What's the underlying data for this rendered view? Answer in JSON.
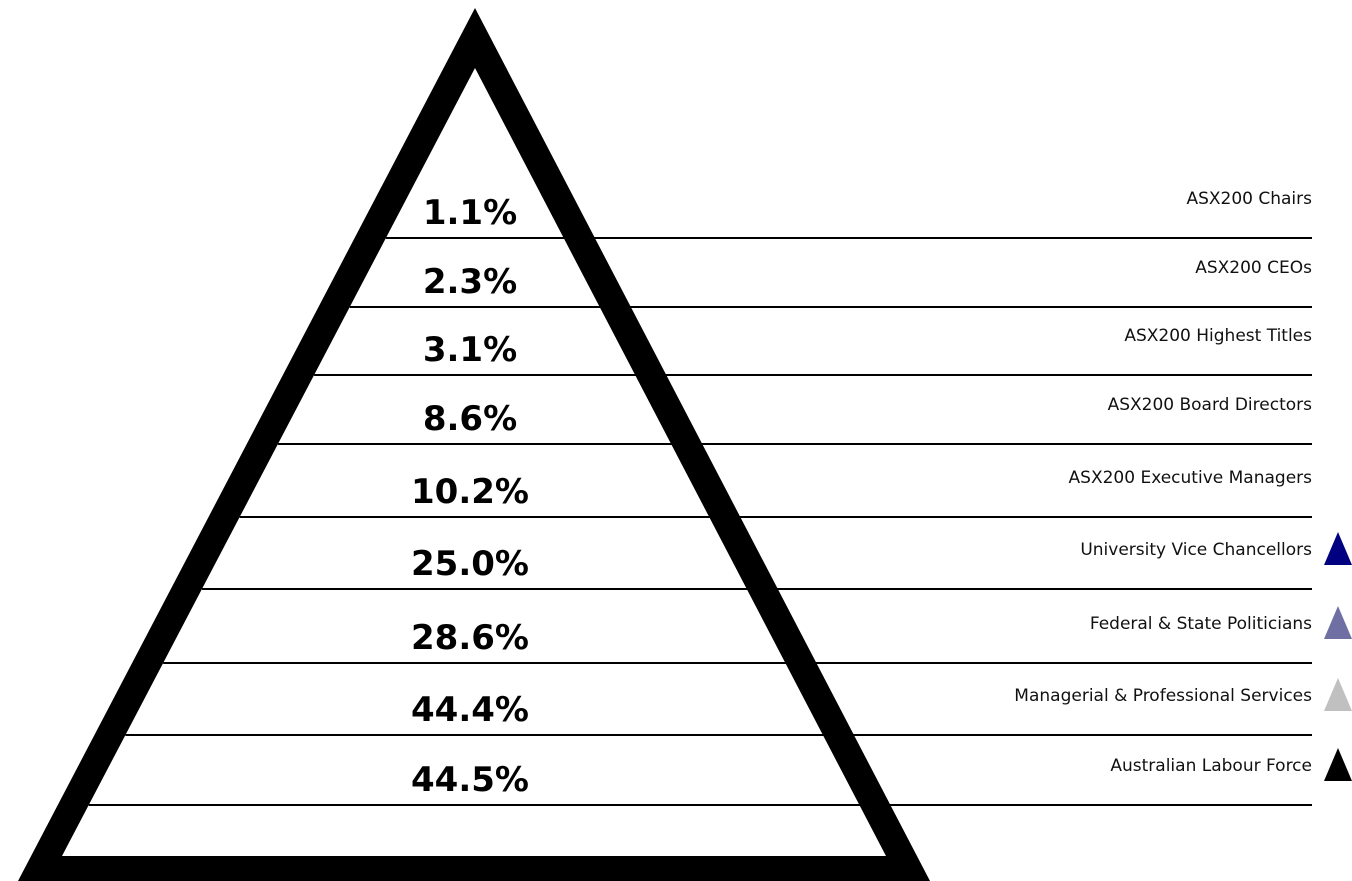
{
  "levels": [
    {
      "percent": "1.1%",
      "label": "ASX200 Chairs"
    },
    {
      "percent": "2.3%",
      "label": "ASX200 CEOs"
    },
    {
      "percent": "3.1%",
      "label": "ASX200 Highest Titles"
    },
    {
      "percent": "8.6%",
      "label": "ASX200 Board Directors"
    },
    {
      "percent": "10.2%",
      "label": "ASX200 Executive Managers"
    },
    {
      "percent": "25.0%",
      "label": "University Vice Chancellors",
      "marker_color": "#000080"
    },
    {
      "percent": "28.6%",
      "label": "Federal & State Politicians",
      "marker_color": "#6f6fa3"
    },
    {
      "percent": "44.4%",
      "label": "Managerial & Professional Services",
      "marker_color": "#c0c0c0"
    },
    {
      "percent": "44.5%",
      "label": "Australian Labour Force",
      "marker_color": "#000000"
    }
  ]
}
